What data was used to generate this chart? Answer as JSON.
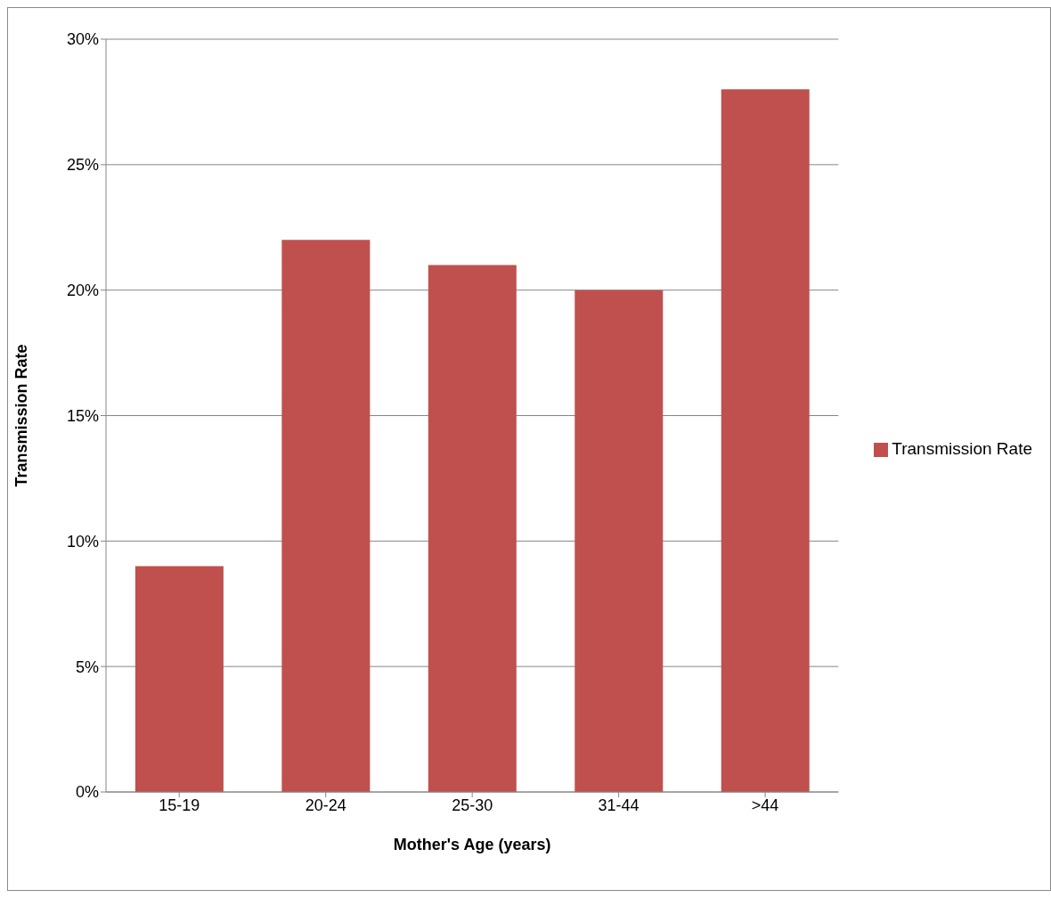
{
  "chart_data": {
    "type": "bar",
    "xlabel": "Mother's Age (years)",
    "ylabel": "Transmission Rate",
    "categories": [
      "15-19",
      "20-24",
      "25-30",
      "31-44",
      ">44"
    ],
    "series": [
      {
        "name": "Transmission Rate",
        "color": "#c0504d",
        "values": [
          9,
          22,
          21,
          20,
          28
        ]
      }
    ],
    "ylim": [
      0,
      30
    ],
    "yticks": [
      {
        "value": 0,
        "label": "0%"
      },
      {
        "value": 5,
        "label": "5%"
      },
      {
        "value": 10,
        "label": "10%"
      },
      {
        "value": 15,
        "label": "15%"
      },
      {
        "value": 20,
        "label": "20%"
      },
      {
        "value": 25,
        "label": "25%"
      },
      {
        "value": 30,
        "label": "30%"
      }
    ],
    "grid": "y",
    "legend": "right"
  }
}
